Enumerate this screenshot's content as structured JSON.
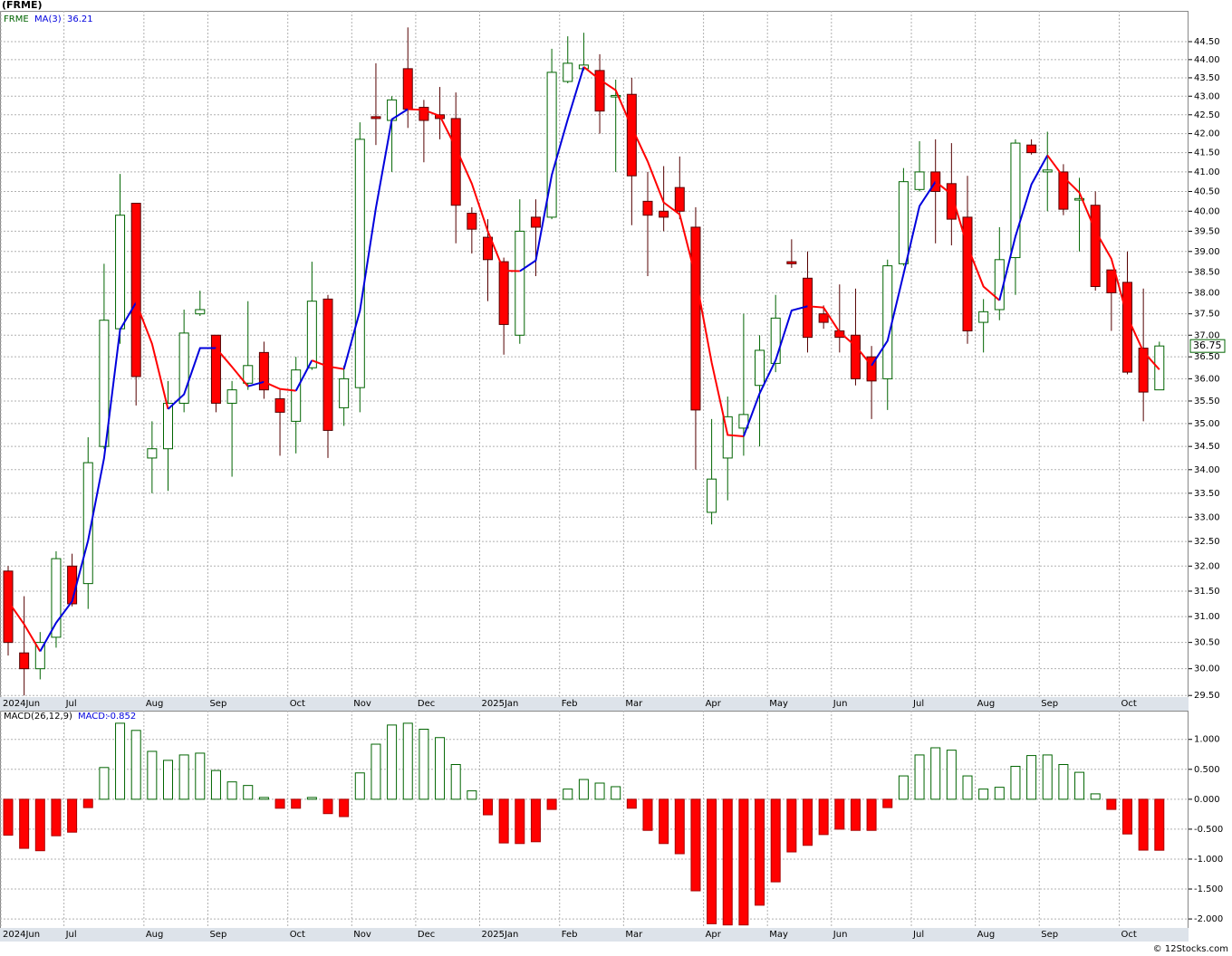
{
  "chart_data": [
    {
      "type": "candlestick",
      "title": "(FRME)",
      "symbol": "FRME",
      "log_scale": true,
      "grid": true,
      "up_color": "#006400",
      "down_color": "#ff0000",
      "ma_up_color": "#0000dd",
      "ma_down_color": "#ff0000",
      "categories": [
        "2024Jun",
        null,
        null,
        null,
        "Jul",
        null,
        null,
        null,
        null,
        "Aug",
        null,
        null,
        null,
        "Sep",
        null,
        null,
        null,
        null,
        "Oct",
        null,
        null,
        null,
        "Nov",
        null,
        null,
        null,
        "Dec",
        null,
        null,
        null,
        "2025Jan",
        null,
        null,
        null,
        null,
        "Feb",
        null,
        null,
        null,
        "Mar",
        null,
        null,
        null,
        null,
        "Apr",
        null,
        null,
        null,
        "May",
        null,
        null,
        null,
        "Jun",
        null,
        null,
        null,
        null,
        "Jul",
        null,
        null,
        null,
        "Aug",
        null,
        null,
        null,
        "Sep",
        null,
        null,
        null,
        null,
        "Oct",
        null,
        null
      ],
      "open": [
        31.9,
        30.3,
        30.0,
        30.6,
        32.0,
        31.65,
        34.5,
        37.15,
        40.2,
        34.25,
        34.45,
        35.45,
        37.5,
        37.0,
        35.45,
        35.9,
        36.6,
        35.55,
        35.05,
        36.25,
        37.85,
        35.35,
        35.8,
        42.45,
        42.35,
        43.75,
        42.7,
        42.5,
        42.4,
        39.95,
        39.35,
        38.75,
        37.0,
        39.85,
        39.85,
        43.4,
        43.75,
        43.7,
        42.98,
        43.05,
        40.25,
        40.0,
        40.6,
        39.6,
        33.1,
        34.25,
        34.9,
        35.85,
        36.35,
        38.75,
        38.35,
        37.5,
        37.1,
        37.0,
        36.5,
        36.0,
        38.7,
        40.55,
        41.0,
        40.7,
        39.85,
        37.3,
        37.6,
        38.85,
        41.7,
        41.0,
        41.0,
        40.28,
        40.15,
        38.55,
        38.25,
        36.7,
        35.75
      ],
      "high": [
        32.0,
        31.4,
        30.7,
        32.3,
        32.25,
        34.7,
        38.7,
        40.95,
        40.2,
        35.05,
        35.95,
        37.6,
        38.05,
        37.0,
        35.95,
        37.8,
        36.85,
        35.75,
        36.5,
        38.75,
        37.95,
        36.3,
        42.3,
        43.9,
        43.0,
        44.9,
        42.9,
        43.25,
        43.1,
        40.1,
        39.8,
        38.85,
        40.3,
        40.3,
        44.3,
        44.65,
        44.75,
        44.15,
        43.45,
        43.5,
        41.0,
        41.15,
        41.4,
        40.1,
        35.1,
        35.6,
        37.5,
        37.0,
        37.95,
        39.3,
        39.0,
        37.7,
        38.2,
        38.1,
        36.75,
        38.8,
        41.1,
        41.8,
        41.85,
        41.75,
        40.9,
        37.85,
        39.6,
        41.85,
        41.85,
        42.05,
        41.2,
        40.85,
        40.5,
        38.55,
        39.0,
        38.1,
        36.85
      ],
      "low": [
        30.25,
        29.5,
        29.8,
        30.4,
        31.2,
        31.15,
        34.45,
        36.8,
        35.4,
        33.5,
        33.55,
        35.25,
        37.45,
        35.25,
        33.85,
        35.75,
        35.55,
        34.3,
        34.35,
        36.2,
        34.25,
        34.95,
        35.25,
        41.7,
        41.0,
        42.15,
        41.25,
        41.85,
        39.2,
        38.95,
        37.8,
        36.55,
        36.8,
        38.4,
        39.8,
        43.35,
        43.7,
        42.0,
        41.0,
        39.65,
        38.4,
        39.5,
        39.8,
        34.0,
        32.85,
        33.35,
        34.3,
        34.5,
        36.15,
        38.6,
        36.6,
        37.15,
        36.6,
        35.85,
        35.1,
        35.3,
        38.65,
        40.5,
        39.2,
        39.15,
        36.8,
        36.6,
        37.35,
        37.95,
        41.45,
        40.0,
        39.9,
        39.0,
        38.05,
        37.1,
        36.1,
        35.05,
        35.75
      ],
      "close": [
        30.5,
        30.0,
        30.5,
        32.15,
        31.25,
        34.15,
        37.35,
        39.9,
        36.05,
        34.45,
        35.45,
        37.05,
        37.6,
        35.45,
        35.75,
        36.3,
        35.75,
        35.25,
        36.2,
        37.8,
        34.85,
        36.0,
        41.85,
        42.4,
        42.9,
        42.65,
        42.35,
        42.4,
        40.15,
        39.55,
        38.8,
        37.25,
        39.5,
        39.6,
        43.65,
        43.9,
        43.85,
        42.6,
        43.02,
        40.9,
        39.9,
        39.85,
        40.0,
        35.3,
        33.8,
        35.15,
        35.2,
        36.65,
        37.4,
        38.7,
        36.95,
        37.3,
        36.95,
        36.0,
        35.95,
        38.65,
        40.75,
        41.0,
        40.5,
        39.8,
        37.1,
        37.55,
        38.8,
        41.75,
        41.5,
        41.05,
        40.05,
        40.32,
        38.15,
        38.0,
        36.15,
        35.7,
        36.75
      ],
      "ma": {
        "name": "MA(3)",
        "values": [
          31.3,
          30.85,
          30.33,
          30.88,
          31.3,
          32.52,
          34.25,
          37.13,
          37.77,
          36.8,
          35.32,
          35.65,
          36.7,
          36.7,
          36.27,
          35.83,
          35.93,
          35.77,
          35.73,
          36.42,
          36.28,
          36.22,
          37.57,
          40.08,
          42.38,
          42.65,
          42.63,
          42.47,
          41.63,
          40.7,
          39.5,
          38.53,
          38.52,
          38.78,
          40.92,
          42.38,
          43.8,
          43.45,
          43.16,
          42.17,
          41.27,
          40.22,
          39.92,
          38.38,
          36.37,
          34.75,
          34.72,
          35.67,
          36.42,
          37.58,
          37.68,
          37.65,
          37.07,
          36.75,
          36.3,
          36.87,
          38.45,
          40.13,
          40.75,
          40.43,
          39.13,
          38.15,
          37.82,
          39.37,
          40.68,
          41.43,
          40.87,
          40.47,
          39.51,
          38.82,
          37.43,
          36.62,
          36.21
        ]
      },
      "ylim": [
        29.47,
        45.37
      ],
      "yticks": [
        {
          "value": 29.5,
          "label": "29.50"
        },
        {
          "value": 30,
          "label": "30.00"
        },
        {
          "value": 30.5,
          "label": "30.50"
        },
        {
          "value": 31,
          "label": "31.00"
        },
        {
          "value": 31.5,
          "label": "31.50"
        },
        {
          "value": 32,
          "label": "32.00"
        },
        {
          "value": 32.5,
          "label": "32.50"
        },
        {
          "value": 33,
          "label": "33.00"
        },
        {
          "value": 33.5,
          "label": "33.50"
        },
        {
          "value": 34,
          "label": "34.00"
        },
        {
          "value": 34.5,
          "label": "34.50"
        },
        {
          "value": 35,
          "label": "35.00"
        },
        {
          "value": 35.5,
          "label": "35.50"
        },
        {
          "value": 36,
          "label": "36.00"
        },
        {
          "value": 36.5,
          "label": "36.50"
        },
        {
          "value": 37,
          "label": "37.00"
        },
        {
          "value": 37.5,
          "label": "37.50"
        },
        {
          "value": 38,
          "label": "38.00"
        },
        {
          "value": 38.5,
          "label": "38.50"
        },
        {
          "value": 39,
          "label": "39.00"
        },
        {
          "value": 39.5,
          "label": "39.50"
        },
        {
          "value": 40,
          "label": "40.00"
        },
        {
          "value": 40.5,
          "label": "40.50"
        },
        {
          "value": 41,
          "label": "41.00"
        },
        {
          "value": 41.5,
          "label": "41.50"
        },
        {
          "value": 42,
          "label": "42.00"
        },
        {
          "value": 42.5,
          "label": "42.50"
        },
        {
          "value": 43,
          "label": "43.00"
        },
        {
          "value": 43.5,
          "label": "43.50"
        },
        {
          "value": 44,
          "label": "44.00"
        },
        {
          "value": 44.5,
          "label": "44.50"
        }
      ]
    },
    {
      "type": "bar",
      "title": "MACD(26,12,9)",
      "value_name": "MACD:",
      "grid": true,
      "up_color": "#006400",
      "down_color": "#ff0000",
      "values": [
        -0.6,
        -0.82,
        -0.86,
        -0.61,
        -0.55,
        -0.14,
        0.53,
        1.27,
        1.15,
        0.8,
        0.65,
        0.74,
        0.77,
        0.48,
        0.29,
        0.23,
        0.03,
        -0.15,
        -0.15,
        0.03,
        -0.24,
        -0.29,
        0.44,
        0.92,
        1.24,
        1.27,
        1.17,
        1.03,
        0.58,
        0.14,
        -0.26,
        -0.73,
        -0.74,
        -0.71,
        -0.17,
        0.17,
        0.33,
        0.27,
        0.21,
        -0.15,
        -0.52,
        -0.74,
        -0.91,
        -1.53,
        -2.08,
        -2.1,
        -2.1,
        -1.77,
        -1.38,
        -0.88,
        -0.77,
        -0.59,
        -0.5,
        -0.52,
        -0.52,
        -0.14,
        0.39,
        0.74,
        0.86,
        0.82,
        0.39,
        0.17,
        0.2,
        0.55,
        0.73,
        0.74,
        0.58,
        0.45,
        0.09,
        -0.17,
        -0.58,
        -0.85,
        -0.852
      ],
      "ylim": [
        -2.15,
        1.48
      ],
      "yticks": [
        {
          "value": 1,
          "label": "1.000"
        },
        {
          "value": 0.5,
          "label": "0.500"
        },
        {
          "value": 0,
          "label": "0.000"
        },
        {
          "value": -0.5,
          "label": "-0.500"
        },
        {
          "value": -1,
          "label": "-1.000"
        },
        {
          "value": -1.5,
          "label": "-1.500"
        },
        {
          "value": -2,
          "label": "-2.000"
        }
      ]
    }
  ],
  "footer": "© 12Stocks.com"
}
